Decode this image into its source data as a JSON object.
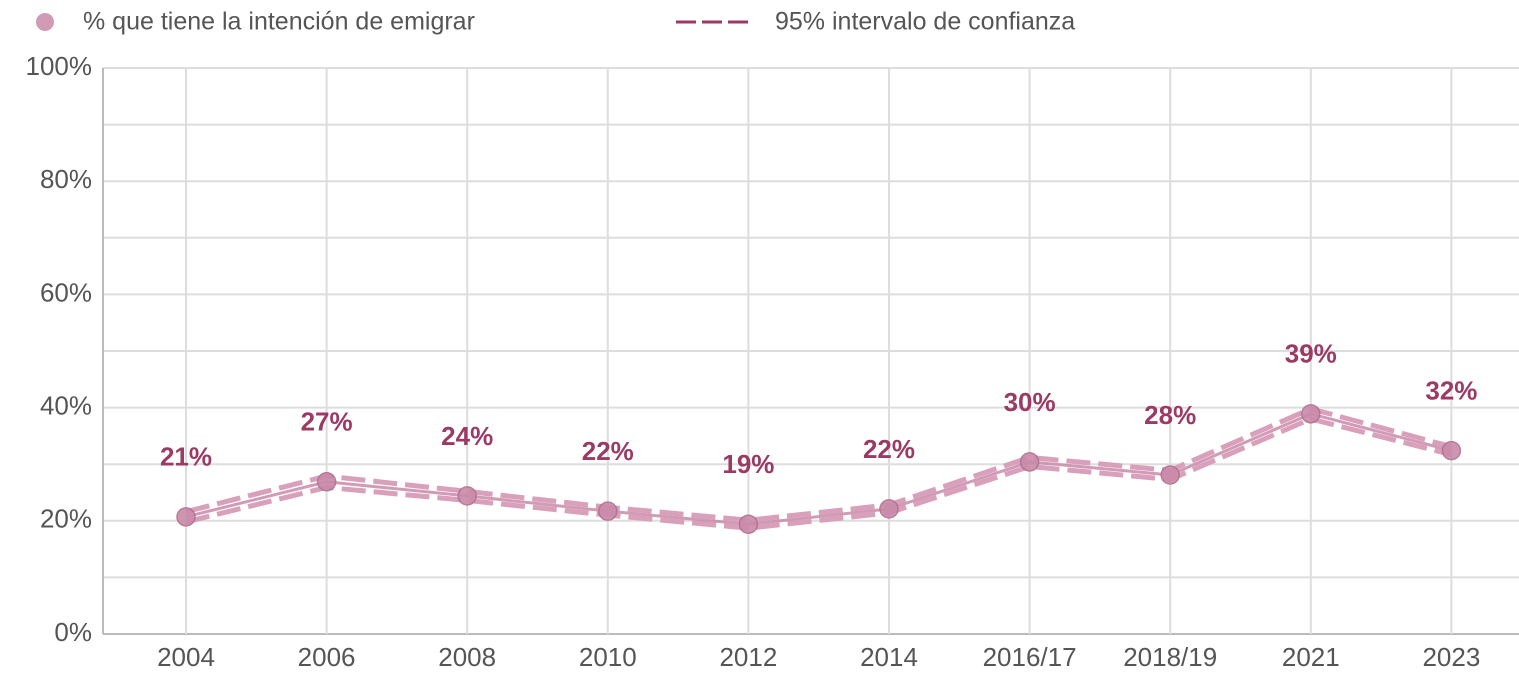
{
  "chart_data": {
    "type": "line",
    "categories": [
      "2004",
      "2006",
      "2008",
      "2010",
      "2012",
      "2014",
      "2016/17",
      "2018/19",
      "2021",
      "2023"
    ],
    "series": [
      {
        "name": "% que tiene la intención de emigrar",
        "color": "#c98aa9",
        "values": [
          20.7,
          26.9,
          24.4,
          21.7,
          19.4,
          22.1,
          30.4,
          28.1,
          38.9,
          32.4
        ],
        "value_labels": [
          "21%",
          "27%",
          "24%",
          "22%",
          "19%",
          "22%",
          "30%",
          "28%",
          "39%",
          "32%"
        ]
      }
    ],
    "confidence_interval": {
      "name": "95% intervalo de confianza",
      "color": "#d9a0bb",
      "lower": [
        19.8,
        25.9,
        23.6,
        21.0,
        18.7,
        21.4,
        29.6,
        27.3,
        38.0,
        31.7
      ],
      "upper": [
        21.6,
        27.9,
        25.2,
        22.4,
        20.1,
        22.8,
        31.2,
        28.9,
        39.8,
        33.1
      ]
    },
    "ylim": [
      0,
      100
    ],
    "yticks": [
      {
        "value": 0,
        "label": "0%"
      },
      {
        "value": 20,
        "label": "20%"
      },
      {
        "value": 40,
        "label": "40%"
      },
      {
        "value": 60,
        "label": "60%"
      },
      {
        "value": 80,
        "label": "80%"
      },
      {
        "value": 100,
        "label": "100%"
      }
    ],
    "yminor": [
      10,
      30,
      50,
      70,
      90
    ],
    "grid": true,
    "legend": "top"
  }
}
